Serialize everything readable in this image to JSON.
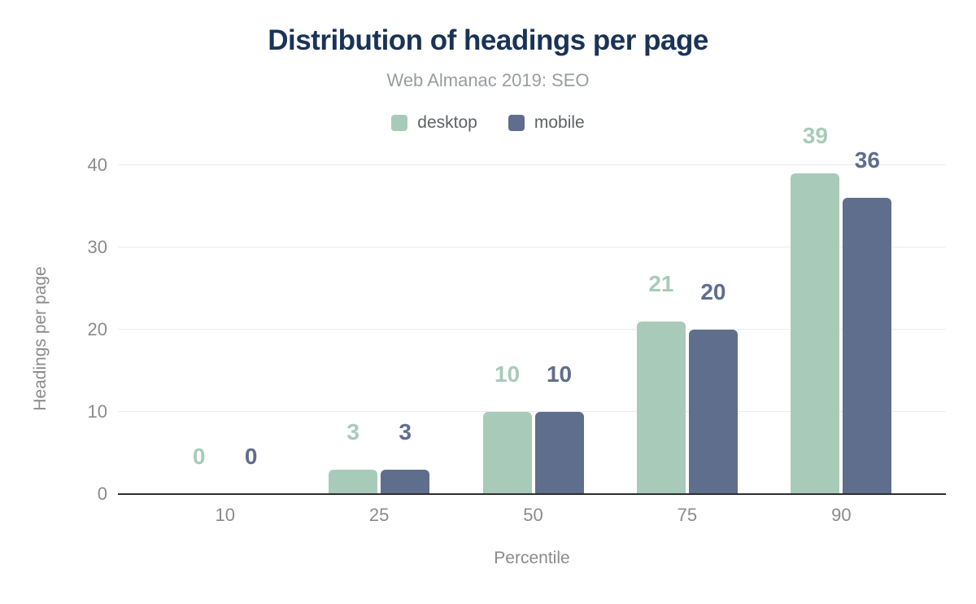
{
  "chart_data": {
    "type": "bar",
    "title": "Distribution of headings per page",
    "subtitle": "Web Almanac 2019: SEO",
    "xlabel": "Percentile",
    "ylabel": "Headings per page",
    "categories": [
      "10",
      "25",
      "50",
      "75",
      "90"
    ],
    "series": [
      {
        "name": "desktop",
        "color": "#a8cbb9",
        "values": [
          0,
          3,
          10,
          21,
          39
        ]
      },
      {
        "name": "mobile",
        "color": "#5f6e8c",
        "values": [
          0,
          3,
          10,
          20,
          36
        ]
      }
    ],
    "ylim": [
      0,
      40
    ],
    "yticks": [
      0,
      10,
      20,
      30,
      40
    ],
    "grid": true,
    "legend_position": "top",
    "value_labels": true
  },
  "colors": {
    "background": "#ffffff",
    "title": "#1a3356",
    "subtitle": "#9a9da0",
    "axis_text": "#8b8b8b",
    "legend_text": "#5e6267",
    "gridline": "#ececec",
    "baseline": "#2e2e2e"
  }
}
